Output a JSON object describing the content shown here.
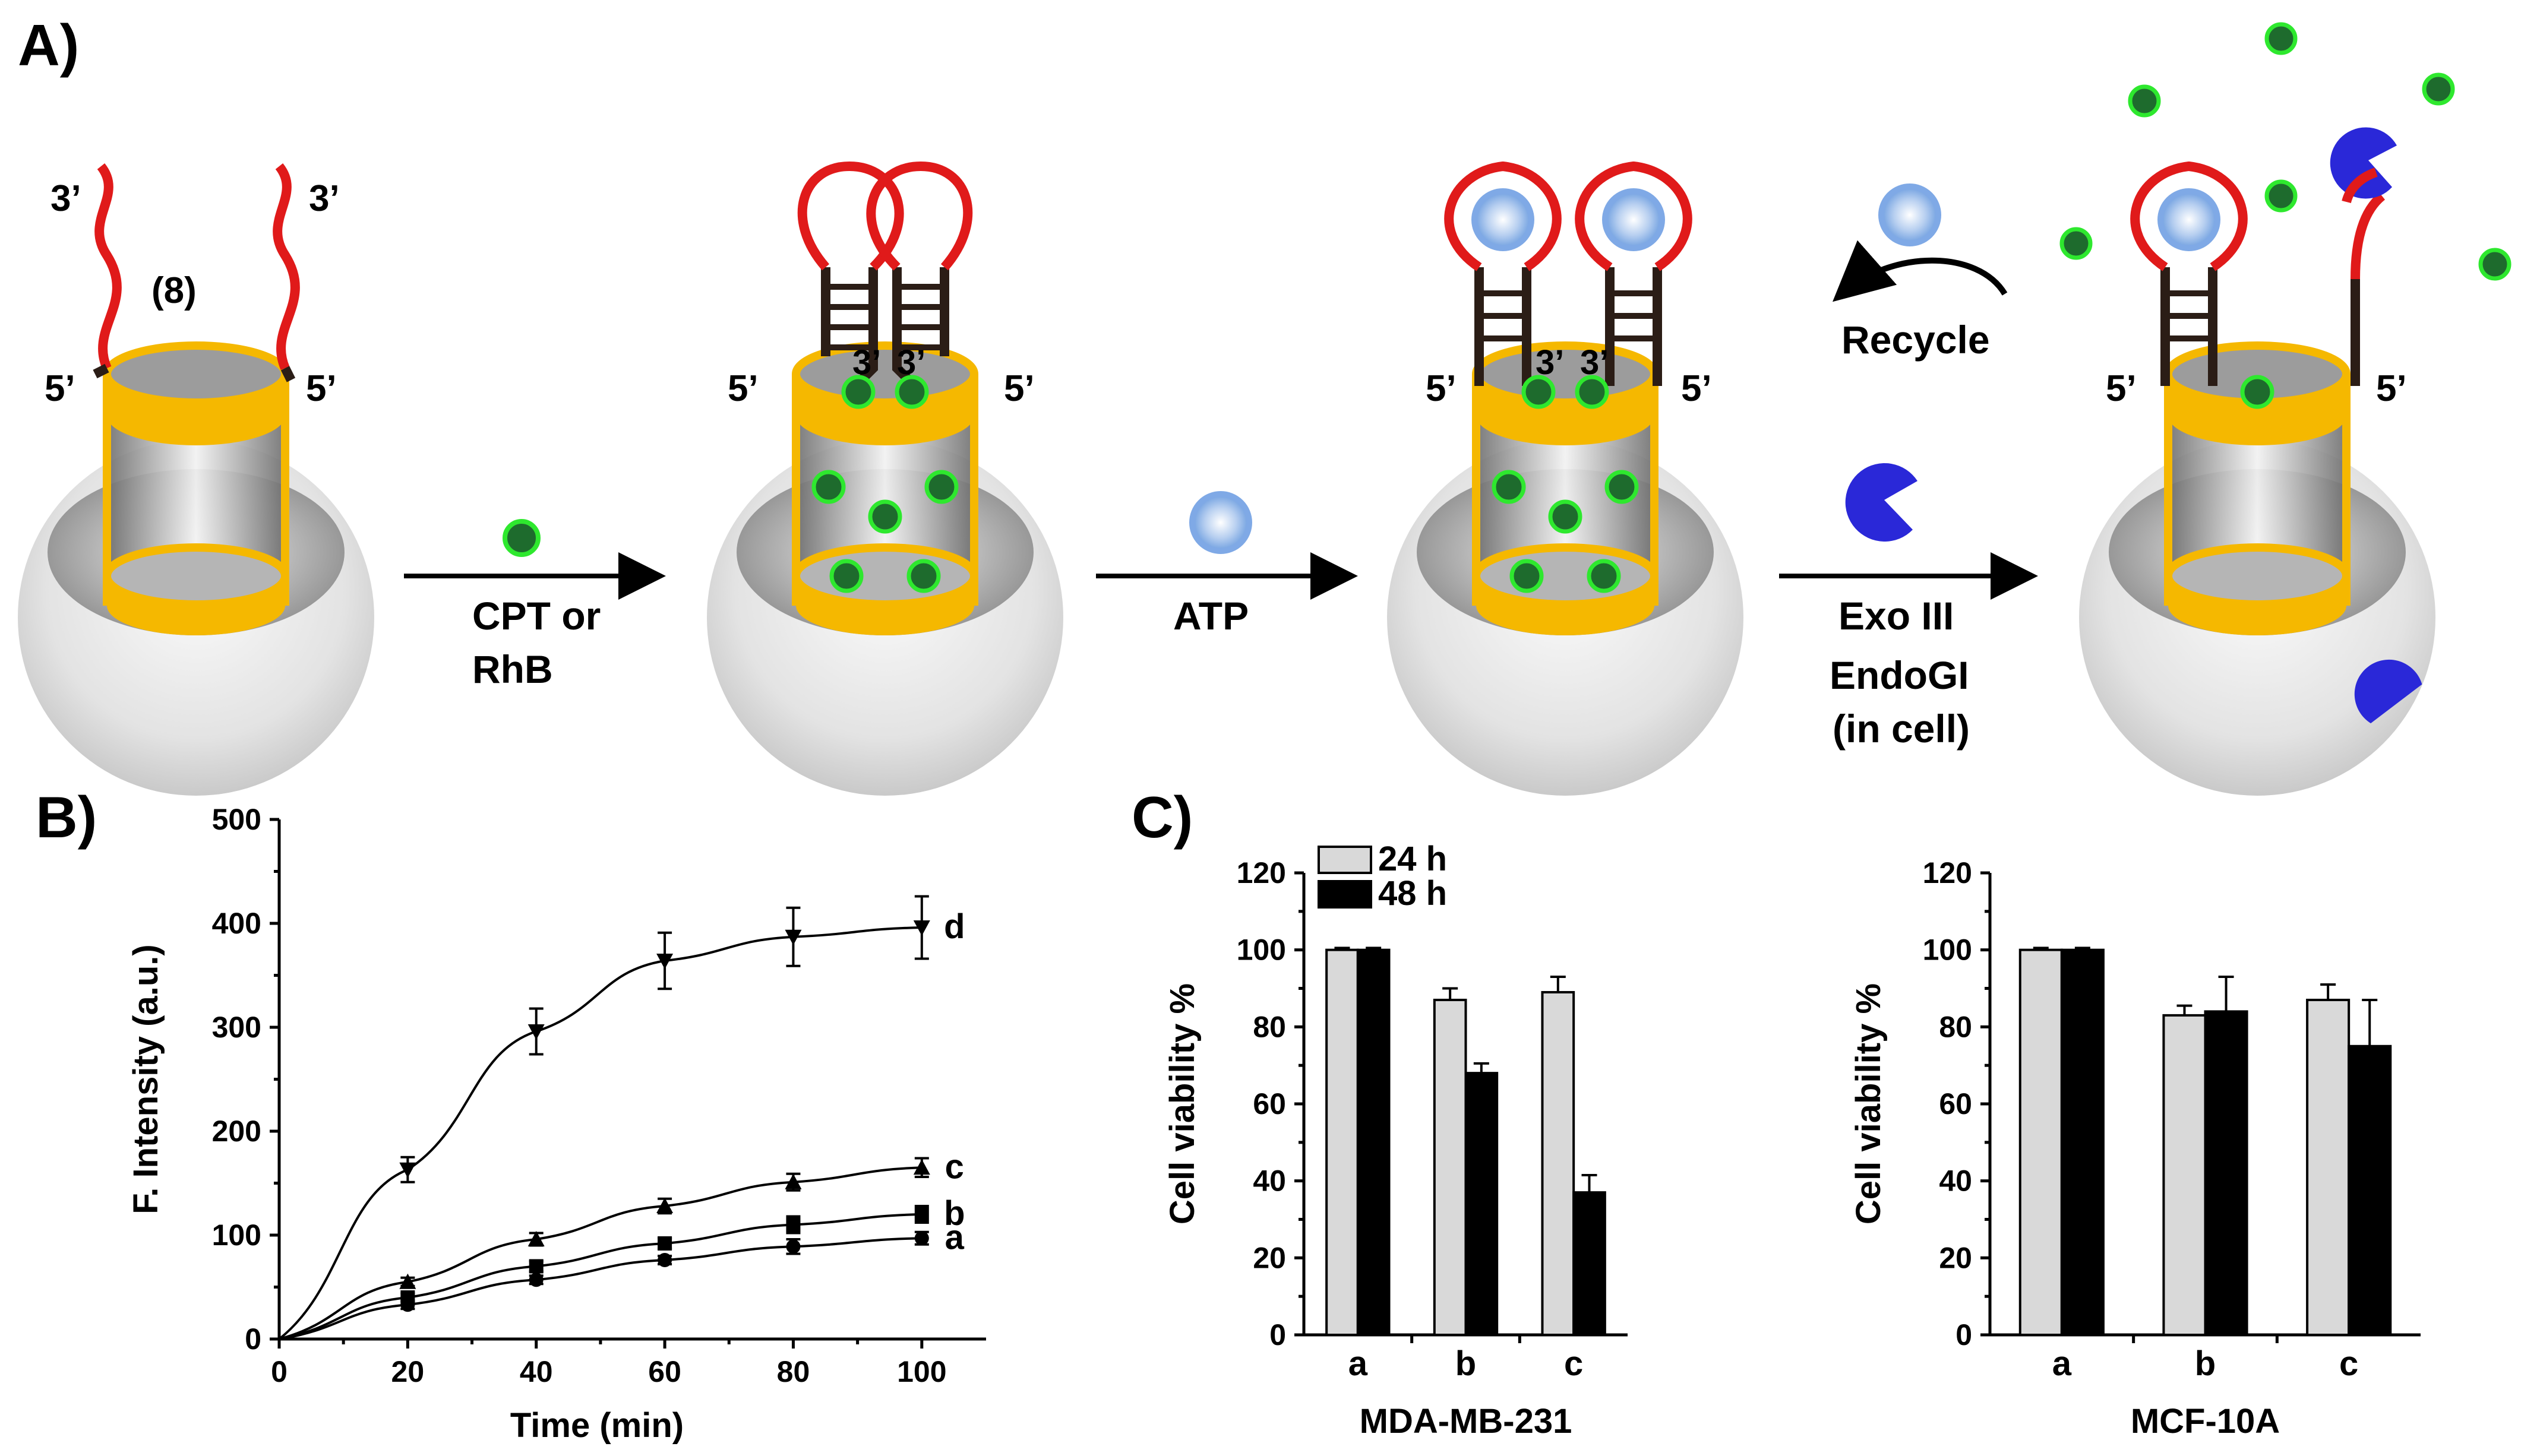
{
  "panels": {
    "a": "A)",
    "b": "B)",
    "c": "C)"
  },
  "scheme": {
    "strand_ends": {
      "three": "3’",
      "five": "5’"
    },
    "repeat_label": "(8)",
    "step1_label_line1": "CPT or",
    "step1_label_line2": "RhB",
    "step2_label": "ATP",
    "step3_label_line1": "Exo III",
    "step3_label_line2": "EndoGI",
    "step3_label_line3": "(in cell)",
    "recycle_label": "Recycle",
    "colors": {
      "cargo": "#1e6b2d",
      "cargo_outline": "#2ee82e",
      "loop": "#e01a1a",
      "stem": "#2b1d16",
      "gate": "#f5b800",
      "enzyme": "#2a28d8",
      "atp": "#7fa9e6"
    }
  },
  "chart_data": [
    {
      "id": "B",
      "type": "line",
      "xlabel": "Time (min)",
      "ylabel": "F. Intensity (a.u.)",
      "xlim": [
        0,
        110
      ],
      "ylim": [
        0,
        500
      ],
      "xticks": [
        0,
        20,
        40,
        60,
        80,
        100
      ],
      "yticks": [
        0,
        100,
        200,
        300,
        400,
        500
      ],
      "x": [
        0,
        20,
        40,
        60,
        80,
        100
      ],
      "series": [
        {
          "name": "a",
          "marker": "circle",
          "values": [
            0,
            33,
            57,
            76,
            89,
            97
          ],
          "err": [
            0,
            4,
            4,
            4,
            7,
            6
          ]
        },
        {
          "name": "b",
          "marker": "square",
          "values": [
            0,
            40,
            70,
            92,
            110,
            120
          ],
          "err": [
            0,
            4,
            5,
            5,
            8,
            8
          ]
        },
        {
          "name": "c",
          "marker": "triangle",
          "values": [
            0,
            55,
            96,
            128,
            151,
            165
          ],
          "err": [
            0,
            4,
            6,
            7,
            8,
            9
          ]
        },
        {
          "name": "d",
          "marker": "triangle-down",
          "values": [
            0,
            163,
            296,
            364,
            387,
            396
          ],
          "err": [
            0,
            12,
            22,
            27,
            28,
            30
          ]
        }
      ]
    },
    {
      "id": "C-left",
      "type": "bar",
      "title": "MDA-MB-231",
      "ylabel": "Cell viability %",
      "ylim": [
        0,
        120
      ],
      "yticks": [
        0,
        20,
        40,
        60,
        80,
        100,
        120
      ],
      "categories": [
        "a",
        "b",
        "c"
      ],
      "series": [
        {
          "name": "24 h",
          "color": "#d9d9d9",
          "values": [
            100,
            87,
            89
          ],
          "err": [
            0.5,
            3,
            4
          ]
        },
        {
          "name": "48 h",
          "color": "#000000",
          "values": [
            100,
            68,
            37
          ],
          "err": [
            0.5,
            2.5,
            4.5
          ]
        }
      ],
      "legend": "top-left"
    },
    {
      "id": "C-right",
      "type": "bar",
      "title": "MCF-10A",
      "ylabel": "Cell viability %",
      "ylim": [
        0,
        120
      ],
      "yticks": [
        0,
        20,
        40,
        60,
        80,
        100,
        120
      ],
      "categories": [
        "a",
        "b",
        "c"
      ],
      "series": [
        {
          "name": "24 h",
          "color": "#d9d9d9",
          "values": [
            100,
            83,
            87
          ],
          "err": [
            0.5,
            2.5,
            4
          ]
        },
        {
          "name": "48 h",
          "color": "#000000",
          "values": [
            100,
            84,
            75
          ],
          "err": [
            0.5,
            9,
            12
          ]
        }
      ]
    }
  ]
}
